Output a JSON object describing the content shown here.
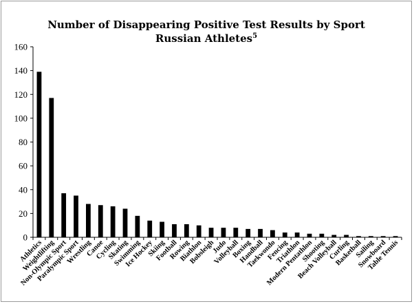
{
  "chart_data": {
    "type": "bar",
    "title": "Number of Disappearing Positive Test Results by Sport",
    "subtitle": "Russian Athletes",
    "subtitle_superscript": "5",
    "xlabel": "",
    "ylabel": "",
    "ylim": [
      0,
      160
    ],
    "yticks": [
      0,
      20,
      40,
      60,
      80,
      100,
      120,
      140,
      160
    ],
    "grid": false,
    "legend": "none",
    "bar_color": "#000000",
    "categories": [
      "Athletics",
      "Weightlifting",
      "Non-Olympic Sport",
      "Paralympic Sport",
      "Wrestling",
      "Canoe",
      "Cycling",
      "Skating",
      "Swimming",
      "Ice Hockey",
      "Skiing",
      "Football",
      "Rowing",
      "Biathlon",
      "Bobsleigh",
      "Judo",
      "Volleyball",
      "Boxing",
      "Handball",
      "Taekwondo",
      "Fencing",
      "Triathlon",
      "Modern Pentathlon",
      "Shooting",
      "Beach Volleyball",
      "Curling",
      "Basketball",
      "Sailing",
      "Snowboard",
      "Table Tennis"
    ],
    "values": [
      139,
      117,
      37,
      35,
      28,
      27,
      26,
      24,
      18,
      14,
      13,
      11,
      11,
      10,
      8,
      8,
      8,
      7,
      7,
      6,
      4,
      4,
      3,
      3,
      2,
      2,
      1,
      1,
      1,
      1
    ]
  }
}
